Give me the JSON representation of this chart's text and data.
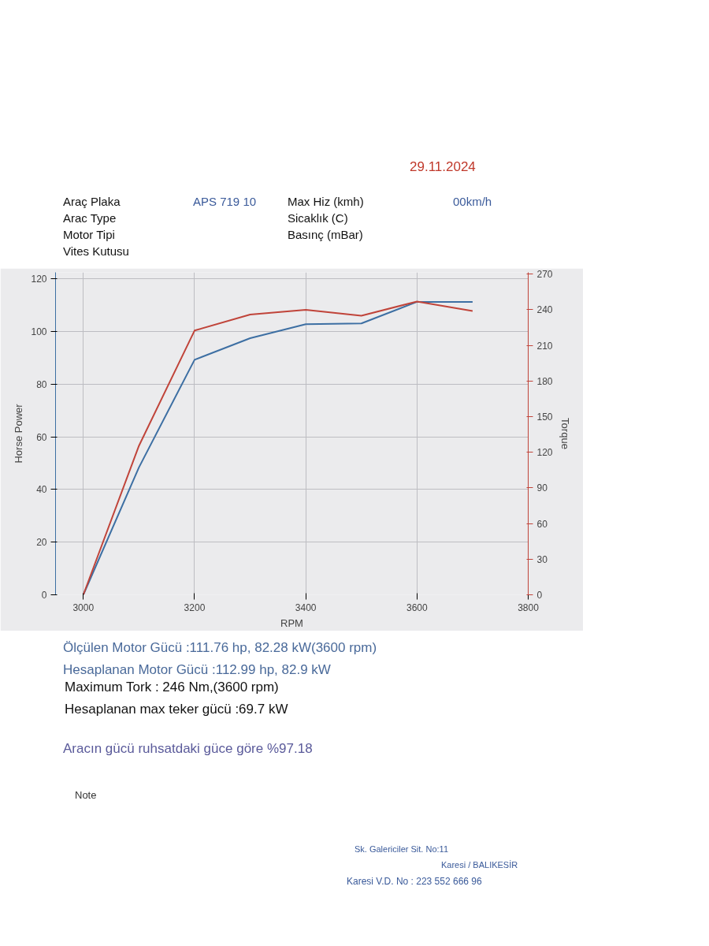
{
  "chart_data": {
    "type": "line",
    "x": [
      3000,
      3100,
      3200,
      3300,
      3400,
      3500,
      3600,
      3700
    ],
    "series": [
      {
        "color": "#3d6fa3",
        "values": [
          0,
          48.4,
          89.3,
          97.5,
          102.8,
          103.1,
          111.3,
          111.3
        ]
      },
      {
        "color": "#c0443a",
        "axis": "y2",
        "values": [
          0,
          125.5,
          222.5,
          236,
          240,
          235,
          247,
          239
        ]
      }
    ],
    "xlabel": "RPM",
    "ylabel": "Horse Power",
    "y2label": "Torque",
    "xlim": [
      2950,
      3800
    ],
    "xticks": [
      3000,
      3200,
      3400,
      3600,
      3800
    ],
    "ylim": [
      0,
      122.5
    ],
    "yticks": [
      0,
      20,
      40,
      60,
      80,
      100,
      120
    ],
    "y2lim": [
      0,
      271.5
    ],
    "y2ticks": [
      0,
      30,
      60,
      90,
      120,
      150,
      180,
      210,
      240,
      270
    ],
    "grid": true,
    "marker": "none",
    "line_style": "solid",
    "annotations": [
      "29.11.2024",
      "Araç Plaka",
      "APS 719 10",
      "Max Hiz (kmh)",
      "00km/h",
      "Arac Type",
      "Sicaklık (C)",
      "Motor Tipi",
      "Basınç (mBar)",
      "Vites Kutusu",
      "Ölçülen Motor Gücü :111.76 hp, 82.28 kW(3600 rpm)",
      "Hesaplanan Motor Gücü :112.99 hp, 82.9 kW",
      "Maximum Tork : 246 Nm,(3600 rpm)",
      "Hesaplanan max teker gücü :69.7 kW",
      "Aracın gücü ruhsatdaki güce göre %97.18",
      "Note",
      "Sk. Galericiler Sit. No:11",
      "Karesi / BALIKESİR",
      "Karesi V.D. No : 223 552 666 96"
    ]
  }
}
